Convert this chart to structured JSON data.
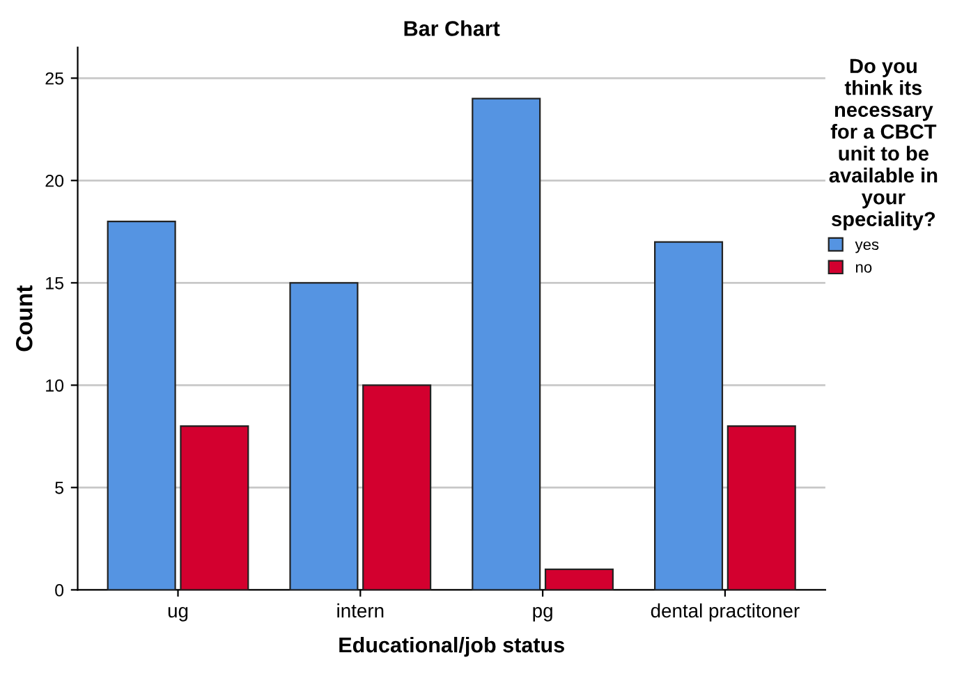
{
  "chart_data": {
    "type": "bar",
    "title": "Bar Chart",
    "xlabel": "Educational/job status",
    "ylabel": "Count",
    "legend_title": "Do you\nthink its\nnecessary\nfor a CBCT\nunit to be\navailable in\nyour\nspeciality?",
    "categories": [
      "ug",
      "intern",
      "pg",
      "dental practitoner"
    ],
    "series": [
      {
        "name": "yes",
        "color": "#5594e2",
        "values": [
          18,
          15,
          24,
          17
        ]
      },
      {
        "name": "no",
        "color": "#d3002f",
        "values": [
          8,
          10,
          1,
          8
        ]
      }
    ],
    "ylim": [
      0,
      26.5
    ],
    "yticks": [
      0,
      5,
      10,
      15,
      20,
      25
    ],
    "grid": "y",
    "legend": "right"
  }
}
